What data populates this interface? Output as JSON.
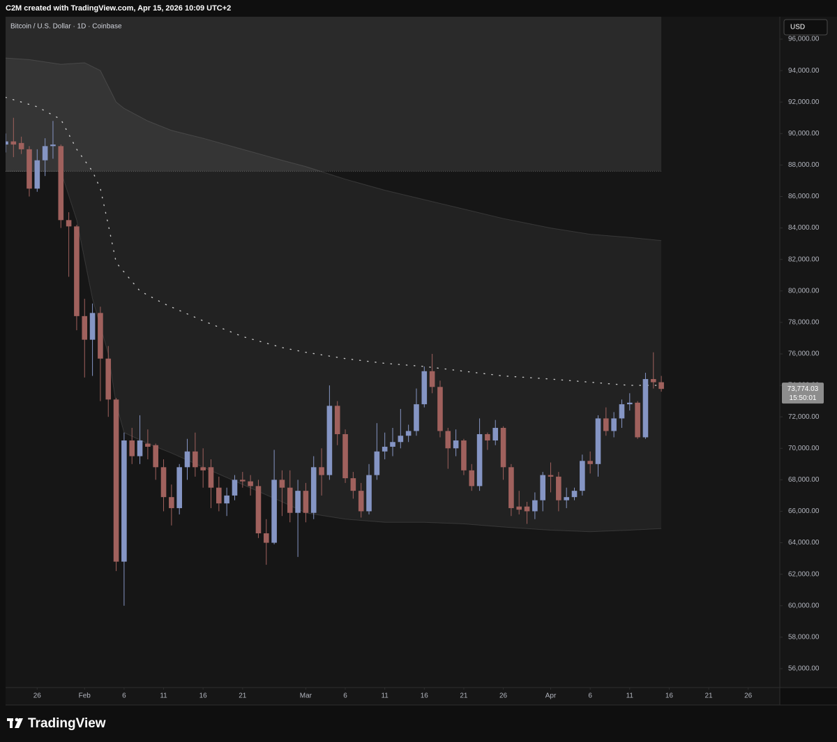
{
  "chart_data": {
    "type": "candlestick",
    "header": "C2M created with TradingView.com, Apr 15, 2026 10:09 UTC+2",
    "title": "Bitcoin / U.S. Dollar · 1D · Coinbase",
    "currency": "USD",
    "brand": "TradingView",
    "up_color": "#8595c4",
    "down_color": "#a0615d",
    "grid": false,
    "x": [
      "2026-01-22",
      "2026-01-23",
      "2026-01-24",
      "2026-01-25",
      "2026-01-26",
      "2026-01-27",
      "2026-01-28",
      "2026-01-29",
      "2026-01-30",
      "2026-01-31",
      "2026-02-01",
      "2026-02-02",
      "2026-02-03",
      "2026-02-04",
      "2026-02-05",
      "2026-02-06",
      "2026-02-07",
      "2026-02-08",
      "2026-02-09",
      "2026-02-10",
      "2026-02-11",
      "2026-02-12",
      "2026-02-13",
      "2026-02-14",
      "2026-02-15",
      "2026-02-16",
      "2026-02-17",
      "2026-02-18",
      "2026-02-19",
      "2026-02-20",
      "2026-02-21",
      "2026-02-22",
      "2026-02-23",
      "2026-02-24",
      "2026-02-25",
      "2026-02-26",
      "2026-02-27",
      "2026-02-28",
      "2026-03-01",
      "2026-03-02",
      "2026-03-03",
      "2026-03-04",
      "2026-03-05",
      "2026-03-06",
      "2026-03-07",
      "2026-03-08",
      "2026-03-09",
      "2026-03-10",
      "2026-03-11",
      "2026-03-12",
      "2026-03-13",
      "2026-03-14",
      "2026-03-15",
      "2026-03-16",
      "2026-03-17",
      "2026-03-18",
      "2026-03-19",
      "2026-03-20",
      "2026-03-21",
      "2026-03-22",
      "2026-03-23",
      "2026-03-24",
      "2026-03-25",
      "2026-03-26",
      "2026-03-27",
      "2026-03-28",
      "2026-03-29",
      "2026-03-30",
      "2026-03-31",
      "2026-04-01",
      "2026-04-02",
      "2026-04-03",
      "2026-04-04",
      "2026-04-05",
      "2026-04-06",
      "2026-04-07",
      "2026-04-08",
      "2026-04-09",
      "2026-04-10",
      "2026-04-11",
      "2026-04-12",
      "2026-04-13",
      "2026-04-14",
      "2026-04-15"
    ],
    "open": [
      89300,
      89500,
      89400,
      89000,
      86500,
      88300,
      89200,
      89200,
      84500,
      84100,
      78400,
      76900,
      78600,
      75700,
      73100,
      62800,
      70500,
      69500,
      70300,
      70200,
      68800,
      66900,
      66200,
      68800,
      69800,
      68800,
      68800,
      67500,
      66500,
      67000,
      68000,
      67900,
      67600,
      64600,
      64000,
      68000,
      67500,
      65900,
      67300,
      65900,
      68800,
      68300,
      72700,
      70900,
      68100,
      67300,
      66000,
      68300,
      69800,
      70100,
      70400,
      70800,
      71100,
      72800,
      74900,
      73900,
      71100,
      70000,
      70500,
      68600,
      67600,
      70900,
      70500,
      71300,
      68800,
      66300,
      66300,
      66000,
      66700,
      68300,
      68200,
      66700,
      66900,
      67300,
      69200,
      69000,
      71900,
      71100,
      71900,
      72800,
      72900,
      70700,
      74400,
      74200
    ],
    "high": [
      90000,
      91000,
      89800,
      89200,
      89000,
      89700,
      90800,
      89300,
      85000,
      84200,
      79500,
      79200,
      79000,
      76500,
      73200,
      71000,
      71300,
      72100,
      71200,
      70300,
      69300,
      67700,
      69000,
      70600,
      71000,
      70000,
      69300,
      68200,
      67500,
      68300,
      68500,
      68300,
      68000,
      65500,
      69900,
      68600,
      68600,
      68000,
      67800,
      69500,
      70000,
      74000,
      73000,
      71200,
      68500,
      67800,
      69000,
      71600,
      71000,
      71300,
      72500,
      71500,
      73800,
      75200,
      76000,
      74300,
      71300,
      71200,
      70600,
      69000,
      71900,
      71000,
      71800,
      71400,
      69000,
      67300,
      66600,
      67200,
      68500,
      69100,
      68500,
      67500,
      67500,
      69600,
      69800,
      72100,
      72600,
      72300,
      73100,
      73500,
      73000,
      74800,
      76100,
      74600
    ],
    "low": [
      88800,
      88500,
      88700,
      86000,
      86300,
      87300,
      88400,
      84000,
      80900,
      77500,
      74500,
      74600,
      73000,
      72000,
      62200,
      60000,
      69000,
      69000,
      69300,
      68000,
      66000,
      65100,
      65800,
      68000,
      68200,
      67500,
      66200,
      66000,
      65700,
      66700,
      67500,
      67000,
      64300,
      62600,
      63900,
      65700,
      65300,
      63100,
      65300,
      65500,
      67000,
      68000,
      70200,
      67800,
      66800,
      65600,
      65800,
      68000,
      69300,
      69500,
      70000,
      70400,
      70800,
      72600,
      73500,
      70700,
      68700,
      69500,
      68300,
      67300,
      67300,
      69900,
      70200,
      68000,
      65700,
      65800,
      65200,
      65500,
      66000,
      67200,
      66000,
      66200,
      66700,
      67000,
      68400,
      68200,
      70800,
      70700,
      71300,
      72400,
      70600,
      70600,
      73800,
      73600
    ],
    "close": [
      89500,
      89300,
      89000,
      86500,
      88300,
      89200,
      89300,
      84500,
      84100,
      78400,
      76900,
      78600,
      75700,
      73100,
      62800,
      70500,
      69500,
      70500,
      70100,
      68800,
      66900,
      66200,
      68800,
      69800,
      68800,
      68600,
      67500,
      66500,
      67000,
      68000,
      67900,
      67600,
      64600,
      64000,
      68000,
      67500,
      65900,
      67300,
      65900,
      68800,
      68300,
      72700,
      70900,
      68100,
      67300,
      66000,
      68300,
      69800,
      70100,
      70400,
      70800,
      71100,
      72800,
      74900,
      73900,
      71100,
      70000,
      70500,
      68600,
      67600,
      70900,
      70500,
      71300,
      68800,
      66200,
      66100,
      66000,
      66700,
      68300,
      68200,
      66700,
      66900,
      67300,
      69200,
      69000,
      71900,
      71100,
      71900,
      72800,
      72900,
      70700,
      74400,
      74200,
      73774.03
    ],
    "last_price": {
      "value": 73774.03,
      "label": "73,774.03"
    },
    "countdown": "15:50:01",
    "range_box": {
      "x": [
        "2026-01-22",
        "2026-04-15"
      ],
      "bottom": 87600
    },
    "upper_band": {
      "x": [
        "2026-01-22",
        "2026-01-25",
        "2026-01-29",
        "2026-02-01",
        "2026-02-03",
        "2026-02-04",
        "2026-02-05",
        "2026-02-06",
        "2026-02-09",
        "2026-02-12",
        "2026-02-16",
        "2026-02-21",
        "2026-02-26",
        "2026-03-01",
        "2026-03-06",
        "2026-03-11",
        "2026-03-16",
        "2026-03-21",
        "2026-03-26",
        "2026-04-01",
        "2026-04-06",
        "2026-04-11",
        "2026-04-15"
      ],
      "values": [
        94800,
        94700,
        94400,
        94500,
        94000,
        93000,
        92000,
        91600,
        90800,
        90200,
        89700,
        89000,
        88300,
        87900,
        87100,
        86400,
        85800,
        85200,
        84600,
        84000,
        83600,
        83400,
        83200
      ]
    },
    "lower_band": {
      "x": [
        "2026-01-22",
        "2026-01-29",
        "2026-01-31",
        "2026-02-02",
        "2026-02-04",
        "2026-02-05",
        "2026-02-06",
        "2026-02-09",
        "2026-02-12",
        "2026-02-16",
        "2026-02-21",
        "2026-02-26",
        "2026-03-01",
        "2026-03-06",
        "2026-03-11",
        "2026-03-16",
        "2026-03-21",
        "2026-03-26",
        "2026-04-01",
        "2026-04-06",
        "2026-04-11",
        "2026-04-15"
      ],
      "values": [
        87600,
        87600,
        84500,
        79500,
        76000,
        72800,
        71000,
        70300,
        69700,
        68800,
        67700,
        66600,
        65900,
        65500,
        65300,
        65300,
        65200,
        65000,
        64800,
        64700,
        64800,
        64900
      ]
    },
    "midline": {
      "x": [
        "2026-01-22",
        "2026-01-26",
        "2026-01-29",
        "2026-01-31",
        "2026-02-02",
        "2026-02-03",
        "2026-02-04",
        "2026-02-05",
        "2026-02-08",
        "2026-02-11",
        "2026-02-16",
        "2026-02-21",
        "2026-02-26",
        "2026-03-01",
        "2026-03-06",
        "2026-03-11",
        "2026-03-16",
        "2026-03-21",
        "2026-03-26",
        "2026-04-01",
        "2026-04-06",
        "2026-04-11",
        "2026-04-15"
      ],
      "values": [
        92300,
        91700,
        90900,
        89000,
        87600,
        86500,
        84200,
        81800,
        80000,
        79200,
        78100,
        77100,
        76400,
        76100,
        75700,
        75400,
        75200,
        74900,
        74600,
        74400,
        74200,
        74000,
        74000
      ]
    },
    "xlim": [
      "2026-01-22",
      "2026-04-30"
    ],
    "xticks": [
      {
        "value": "2026-01-26",
        "label": "26"
      },
      {
        "value": "2026-02-01",
        "label": "Feb"
      },
      {
        "value": "2026-02-06",
        "label": "6"
      },
      {
        "value": "2026-02-11",
        "label": "11"
      },
      {
        "value": "2026-02-16",
        "label": "16"
      },
      {
        "value": "2026-02-21",
        "label": "21"
      },
      {
        "value": "2026-03-01",
        "label": "Mar"
      },
      {
        "value": "2026-03-06",
        "label": "6"
      },
      {
        "value": "2026-03-11",
        "label": "11"
      },
      {
        "value": "2026-03-16",
        "label": "16"
      },
      {
        "value": "2026-03-21",
        "label": "21"
      },
      {
        "value": "2026-03-26",
        "label": "26"
      },
      {
        "value": "2026-04-01",
        "label": "Apr"
      },
      {
        "value": "2026-04-06",
        "label": "6"
      },
      {
        "value": "2026-04-11",
        "label": "11"
      },
      {
        "value": "2026-04-16",
        "label": "16"
      },
      {
        "value": "2026-04-21",
        "label": "21"
      },
      {
        "value": "2026-04-26",
        "label": "26"
      }
    ],
    "ylim": [
      54800,
      97420
    ],
    "yticks": [
      {
        "value": 56000,
        "label": "56,000.00"
      },
      {
        "value": 58000,
        "label": "58,000.00"
      },
      {
        "value": 60000,
        "label": "60,000.00"
      },
      {
        "value": 62000,
        "label": "62,000.00"
      },
      {
        "value": 64000,
        "label": "64,000.00"
      },
      {
        "value": 66000,
        "label": "66,000.00"
      },
      {
        "value": 68000,
        "label": "68,000.00"
      },
      {
        "value": 70000,
        "label": "70,000.00"
      },
      {
        "value": 72000,
        "label": "72,000.00"
      },
      {
        "value": 74000,
        "label": "74,000.00"
      },
      {
        "value": 76000,
        "label": "76,000.00"
      },
      {
        "value": 78000,
        "label": "78,000.00"
      },
      {
        "value": 80000,
        "label": "80,000.00"
      },
      {
        "value": 82000,
        "label": "82,000.00"
      },
      {
        "value": 84000,
        "label": "84,000.00"
      },
      {
        "value": 86000,
        "label": "86,000.00"
      },
      {
        "value": 88000,
        "label": "88,000.00"
      },
      {
        "value": 90000,
        "label": "90,000.00"
      },
      {
        "value": 92000,
        "label": "92,000.00"
      },
      {
        "value": 94000,
        "label": "94,000.00"
      },
      {
        "value": 96000,
        "label": "96,000.00"
      }
    ]
  }
}
